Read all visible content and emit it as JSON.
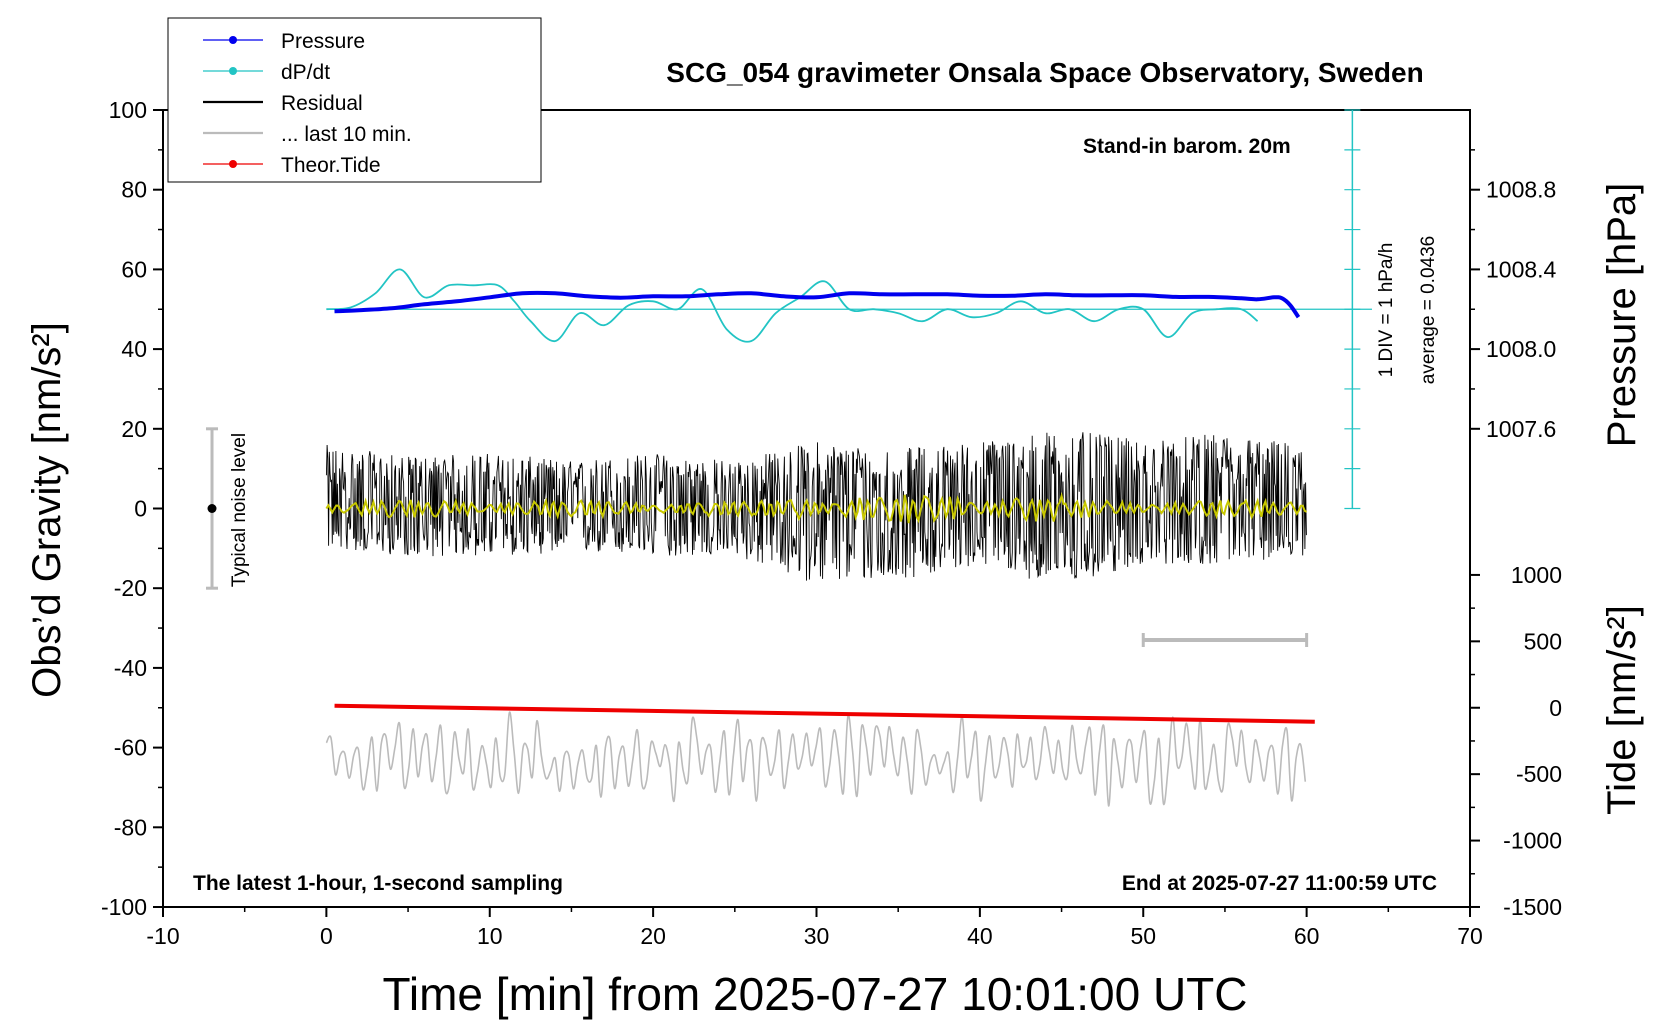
{
  "chart_data": {
    "type": "line",
    "title": "SCG_054 gravimeter Onsala Space Observatory, Sweden",
    "xlabel": "Time [min] from 2025-07-27 10:01:00 UTC",
    "ylabel_left": "Obs’d Gravity [nm/s²]",
    "ylabel_right_pressure": "Pressure [hPa]",
    "ylabel_right_tide": "Tide [nm/s²]",
    "xlim": [
      -10,
      70
    ],
    "ylim": [
      -100,
      100
    ],
    "x_ticks": [
      "-10",
      "0",
      "10",
      "20",
      "30",
      "40",
      "50",
      "60",
      "70"
    ],
    "y_ticks": [
      "-100",
      "-80",
      "-60",
      "-40",
      "-20",
      "0",
      "20",
      "40",
      "60",
      "80",
      "100"
    ],
    "pressure_axis": {
      "ticks": [
        "1007.6",
        "1008.0",
        "1008.4",
        "1008.8"
      ],
      "tick_values": [
        1007.6,
        1008.0,
        1008.4,
        1008.8
      ]
    },
    "tide_axis": {
      "ticks": [
        "-1500",
        "-1000",
        "-500",
        "0",
        "500",
        "1000"
      ],
      "tick_values": [
        -1500,
        -1000,
        -500,
        0,
        500,
        1000
      ]
    },
    "legend": {
      "placement": "top-left",
      "entries": [
        "Pressure",
        "dP/dt",
        "Residual",
        "... last 10 min.",
        "Theor.Tide"
      ]
    },
    "annotations": {
      "station": "Stand-in barom. 20m",
      "div_label": "1 DIV = 1 hPa/h",
      "average_label": "average = 0.0436",
      "noise_label": "Typical noise level",
      "bottom_left": "The latest 1-hour, 1-second sampling",
      "bottom_right": "End at 2025-07-27 11:00:59 UTC"
    },
    "noise_bar": {
      "x": -7,
      "y": 0,
      "low": -20,
      "high": 20
    },
    "last10_bar": {
      "x_start": 50,
      "x_end": 60,
      "y": -33
    },
    "series": [
      {
        "name": "Pressure",
        "color": "#0000ee",
        "unit": "hPa",
        "x": [
          0.5,
          2,
          4,
          6,
          8,
          10,
          12,
          14,
          16,
          18,
          20,
          22,
          24,
          26,
          28,
          30,
          32,
          34,
          36,
          38,
          40,
          42,
          44,
          46,
          48,
          50,
          52,
          54,
          56,
          57,
          58,
          58.5,
          59,
          59.5
        ],
        "values": [
          1008.19,
          1008.195,
          1008.205,
          1008.225,
          1008.24,
          1008.26,
          1008.28,
          1008.28,
          1008.265,
          1008.258,
          1008.265,
          1008.265,
          1008.275,
          1008.28,
          1008.265,
          1008.26,
          1008.28,
          1008.275,
          1008.275,
          1008.275,
          1008.268,
          1008.268,
          1008.275,
          1008.27,
          1008.27,
          1008.27,
          1008.262,
          1008.262,
          1008.255,
          1008.25,
          1008.26,
          1008.255,
          1008.22,
          1008.16
        ]
      },
      {
        "name": "dP/dt",
        "color": "#22c4c4",
        "unit": "hPa/h",
        "baseline_value": 1008.2,
        "x": [
          0,
          1.5,
          3,
          4.5,
          6,
          7.5,
          9,
          10.5,
          11.5,
          12.5,
          14,
          15.5,
          17,
          18.5,
          20,
          21.5,
          23,
          24.5,
          26,
          27.5,
          29,
          30.5,
          32,
          33.5,
          35,
          36.5,
          38,
          39.5,
          41,
          42.5,
          44,
          45.5,
          47,
          48.5,
          50,
          51.5,
          53,
          54.5,
          56,
          57
        ],
        "values": [
          0.0,
          0.05,
          0.4,
          1.0,
          0.3,
          0.6,
          0.6,
          0.6,
          0.2,
          -0.3,
          -0.8,
          -0.1,
          -0.4,
          0.1,
          0.2,
          0.0,
          0.5,
          -0.5,
          -0.8,
          -0.1,
          0.3,
          0.7,
          0.0,
          0.0,
          -0.1,
          -0.3,
          0.0,
          -0.2,
          -0.1,
          0.2,
          -0.1,
          0.0,
          -0.3,
          0.0,
          0.0,
          -0.7,
          -0.1,
          0.0,
          0.0,
          -0.3
        ]
      },
      {
        "name": "Residual",
        "color": "#000000",
        "unit": "nm/s²",
        "envelope_x": [
          0,
          5,
          10,
          15,
          20,
          25,
          30,
          35,
          40,
          45,
          50,
          55,
          60
        ],
        "envelope_high": [
          16,
          13,
          14,
          12,
          14,
          12,
          17,
          15,
          17,
          20,
          17,
          19,
          16
        ],
        "envelope_low": [
          -10,
          -12,
          -12,
          -11,
          -12,
          -12,
          -19,
          -18,
          -14,
          -20,
          -14,
          -14,
          -12
        ]
      },
      {
        "name": "Residual smoothed",
        "color": "#c8c800",
        "unit": "nm/s²",
        "amplitude": 3
      },
      {
        "name": "Theor.Tide",
        "color": "#ee0000",
        "unit": "nm/s²",
        "x": [
          0.5,
          60.5
        ],
        "values": [
          15,
          -105
        ]
      },
      {
        "name": "... last 10 min.",
        "color": "#bbbbbb",
        "unit": "nm/s²",
        "center": -63,
        "amplitude": 10,
        "min": -79,
        "max": -43
      }
    ]
  }
}
